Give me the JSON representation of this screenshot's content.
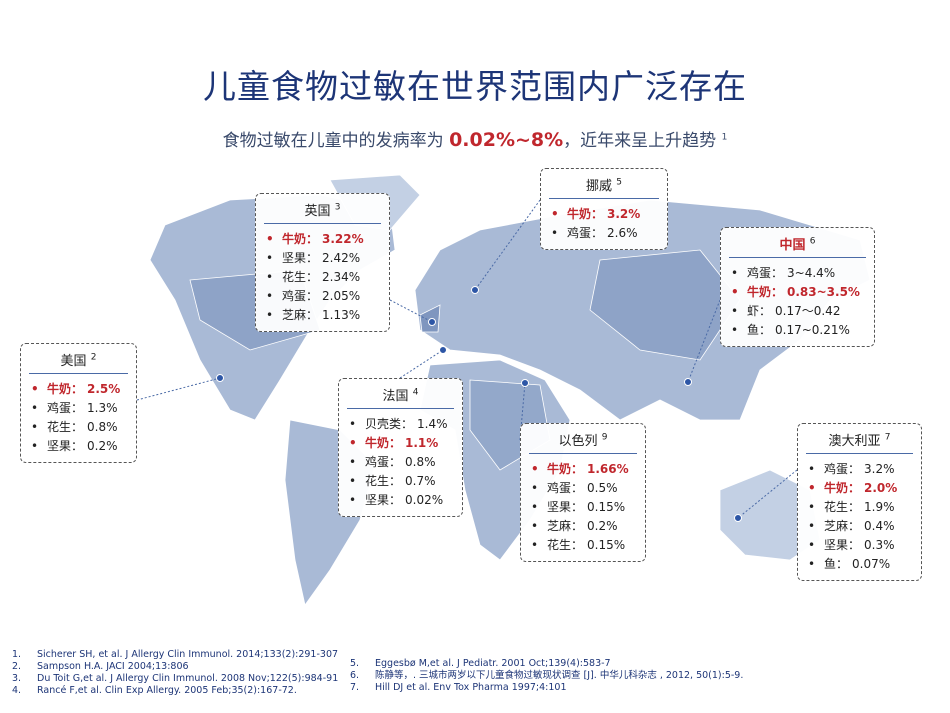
{
  "title": "儿童食物过敏在世界范围内广泛存在",
  "subtitle": {
    "before": "食物过敏在儿童中的发病率为 ",
    "highlight": "0.02%~8%",
    "after": "，近年来呈上升趋势",
    "note": "1",
    "highlight_color": "#c0272d"
  },
  "boxes": [
    {
      "country": "英国",
      "note": "3",
      "items": [
        {
          "label": "牛奶：",
          "value": "3.22%",
          "color": "#c0272d"
        },
        {
          "label": "坚果：",
          "value": "2.42%"
        },
        {
          "label": "花生：",
          "value": "2.34%"
        },
        {
          "label": "鸡蛋：",
          "value": "2.05%"
        },
        {
          "label": "芝麻：",
          "value": "1.13%"
        }
      ]
    },
    {
      "country": "挪威",
      "note": "5",
      "items": [
        {
          "label": "牛奶：",
          "value": "3.2%",
          "color": "#c0272d"
        },
        {
          "label": "鸡蛋：",
          "value": "2.6%"
        }
      ]
    },
    {
      "country": "中国",
      "note": "6",
      "title_color": "#c0272d",
      "items": [
        {
          "label": "鸡蛋：",
          "value": "3~4.4%"
        },
        {
          "label": "牛奶：",
          "value": "0.83~3.5%",
          "color": "#c0272d"
        },
        {
          "label": "虾：",
          "value": "0.17～0.42"
        },
        {
          "label": "鱼：",
          "value": "0.17~0.21%"
        }
      ]
    },
    {
      "country": "美国",
      "note": "2",
      "items": [
        {
          "label": "牛奶：",
          "value": "2.5%",
          "color": "#c0272d"
        },
        {
          "label": "鸡蛋：",
          "value": "1.3%"
        },
        {
          "label": "花生：",
          "value": "0.8%"
        },
        {
          "label": "坚果：",
          "value": "0.2%"
        }
      ]
    },
    {
      "country": "法国",
      "note": "4",
      "items": [
        {
          "label": "贝壳类：",
          "value": "1.4%"
        },
        {
          "label": "牛奶：",
          "value": "1.1%",
          "color": "#c0272d"
        },
        {
          "label": "鸡蛋：",
          "value": "0.8%"
        },
        {
          "label": "花生：",
          "value": "0.7%"
        },
        {
          "label": "坚果：",
          "value": "0.02%"
        }
      ]
    },
    {
      "country": "以色列",
      "note": "9",
      "items": [
        {
          "label": "牛奶：",
          "value": "1.66%",
          "color": "#c0272d"
        },
        {
          "label": "鸡蛋：",
          "value": "0.5%"
        },
        {
          "label": "坚果：",
          "value": "0.15%"
        },
        {
          "label": "芝麻：",
          "value": "0.2%"
        },
        {
          "label": "花生：",
          "value": "0.15%"
        }
      ]
    },
    {
      "country": "澳大利亚",
      "note": "7",
      "items": [
        {
          "label": "鸡蛋：",
          "value": "3.2%"
        },
        {
          "label": "牛奶：",
          "value": "2.0%",
          "color": "#c0272d"
        },
        {
          "label": "花生：",
          "value": "1.9%"
        },
        {
          "label": "芝麻：",
          "value": "0.4%"
        },
        {
          "label": "坚果：",
          "value": "0.3%"
        },
        {
          "label": "鱼：",
          "value": "0.07%"
        }
      ]
    }
  ],
  "references": {
    "left": [
      {
        "num": "1.",
        "text": "Sicherer SH, et al. J Allergy Clin Immunol. 2014;133(2):291-307"
      },
      {
        "num": "2.",
        "text": "Sampson H.A. JACI 2004;13:806"
      },
      {
        "num": "3.",
        "text": "Du Toit G,et al. J Allergy Clin Immunol. 2008 Nov;122(5):984-91"
      },
      {
        "num": "4.",
        "text": "Rancé F,et al. Clin Exp Allergy. 2005 Feb;35(2):167-72."
      }
    ],
    "right": [
      {
        "num": "5.",
        "text": "Eggesbø M,et al. J Pediatr. 2001 Oct;139(4):583-7"
      },
      {
        "num": "6.",
        "text": "陈静等，. 三城市两岁以下儿童食物过敏现状调查 [J]. 中华儿科杂志 , 2012, 50(1):5-9."
      },
      {
        "num": "7.",
        "text": "Hill DJ et al.  Env Tox  Pharma 1997;4:101"
      }
    ]
  }
}
